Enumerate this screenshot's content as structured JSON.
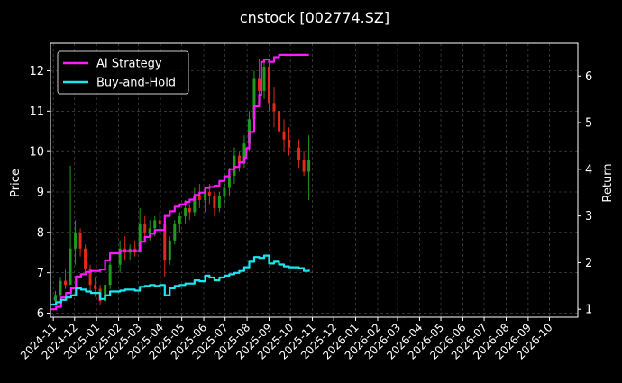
{
  "chart_data": {
    "type": "line",
    "title": "cnstock [002774.SZ]",
    "xlabel": "",
    "ylabel_left": "Price",
    "ylabel_right": "Return",
    "x_tick_labels": [
      "2024-11",
      "2024-12",
      "2025-01",
      "2025-02",
      "2025-03",
      "2025-04",
      "2025-05",
      "2025-06",
      "2025-07",
      "2025-08",
      "2025-09",
      "2025-10",
      "2025-11",
      "2025-12",
      "2026-01",
      "2026-02",
      "2026-03",
      "2026-04",
      "2026-05",
      "2026-06",
      "2026-07",
      "2026-08",
      "2026-09",
      "2026-10"
    ],
    "x_range": [
      "2024-10-28",
      "2026-11-10"
    ],
    "ylim_left": [
      5.9,
      12.68
    ],
    "ylim_right": [
      0.83,
      6.7
    ],
    "y_ticks_left": [
      6,
      7,
      8,
      9,
      10,
      11,
      12
    ],
    "y_ticks_right": [
      1,
      2,
      3,
      4,
      5,
      6
    ],
    "grid": true,
    "legend_position": "top-left",
    "colors": {
      "background": "#000000",
      "up": "#1e9a1e",
      "down": "#e02a1a",
      "ai": "#ff1aff",
      "bh": "#19e8f2",
      "grid": "#555555"
    },
    "price_candles": {
      "note_ohlc": "[date, open, high, low, close]",
      "values": [
        [
          "2024-11-04",
          6.3,
          6.55,
          6.2,
          6.45
        ],
        [
          "2024-11-11",
          6.45,
          6.9,
          6.4,
          6.8
        ],
        [
          "2024-11-18",
          6.8,
          7.1,
          6.6,
          6.7
        ],
        [
          "2024-11-25",
          6.7,
          9.65,
          6.7,
          7.6
        ],
        [
          "2024-12-02",
          7.6,
          8.3,
          7.2,
          8.0
        ],
        [
          "2024-12-09",
          8.0,
          8.1,
          7.4,
          7.6
        ],
        [
          "2024-12-16",
          7.6,
          7.7,
          7.0,
          7.1
        ],
        [
          "2024-12-23",
          7.1,
          7.2,
          6.5,
          6.7
        ],
        [
          "2024-12-30",
          6.7,
          6.9,
          6.4,
          6.6
        ],
        [
          "2025-01-06",
          6.6,
          6.7,
          6.2,
          6.3
        ],
        [
          "2025-01-13",
          6.3,
          6.8,
          6.2,
          6.7
        ],
        [
          "2025-01-20",
          6.7,
          7.3,
          6.6,
          7.2
        ],
        [
          "2025-02-03",
          7.2,
          7.8,
          7.0,
          7.6
        ],
        [
          "2025-02-10",
          7.6,
          7.9,
          7.3,
          7.5
        ],
        [
          "2025-02-17",
          7.5,
          7.7,
          7.3,
          7.6
        ],
        [
          "2025-02-24",
          7.6,
          7.8,
          7.4,
          7.5
        ],
        [
          "2025-03-03",
          7.5,
          8.6,
          7.5,
          8.2
        ],
        [
          "2025-03-10",
          8.2,
          8.4,
          7.9,
          8.0
        ],
        [
          "2025-03-17",
          8.0,
          8.3,
          7.8,
          8.1
        ],
        [
          "2025-03-24",
          8.1,
          8.4,
          7.9,
          8.3
        ],
        [
          "2025-03-31",
          8.3,
          8.5,
          8.0,
          8.2
        ],
        [
          "2025-04-07",
          8.2,
          8.3,
          6.9,
          7.3
        ],
        [
          "2025-04-14",
          7.3,
          7.9,
          7.2,
          7.8
        ],
        [
          "2025-04-21",
          7.8,
          8.3,
          7.7,
          8.2
        ],
        [
          "2025-04-28",
          8.2,
          8.5,
          8.0,
          8.4
        ],
        [
          "2025-05-06",
          8.4,
          8.8,
          8.2,
          8.6
        ],
        [
          "2025-05-12",
          8.6,
          8.7,
          8.3,
          8.5
        ],
        [
          "2025-05-19",
          8.5,
          9.1,
          8.4,
          8.9
        ],
        [
          "2025-05-26",
          8.9,
          9.2,
          8.6,
          8.8
        ],
        [
          "2025-06-03",
          8.8,
          9.1,
          8.5,
          9.0
        ],
        [
          "2025-06-09",
          9.0,
          9.2,
          8.7,
          8.9
        ],
        [
          "2025-06-16",
          8.9,
          9.0,
          8.4,
          8.6
        ],
        [
          "2025-06-23",
          8.6,
          9.0,
          8.5,
          8.9
        ],
        [
          "2025-06-30",
          8.9,
          9.3,
          8.7,
          9.1
        ],
        [
          "2025-07-07",
          9.1,
          9.6,
          8.9,
          9.4
        ],
        [
          "2025-07-14",
          9.4,
          10.1,
          9.2,
          9.9
        ],
        [
          "2025-07-21",
          9.9,
          10.0,
          9.5,
          9.7
        ],
        [
          "2025-07-28",
          9.7,
          10.4,
          9.6,
          10.2
        ],
        [
          "2025-08-04",
          10.2,
          11.0,
          10.0,
          10.8
        ],
        [
          "2025-08-11",
          10.8,
          12.0,
          10.6,
          11.8
        ],
        [
          "2025-08-18",
          11.8,
          12.3,
          11.2,
          11.5
        ],
        [
          "2025-08-25",
          11.5,
          12.3,
          11.3,
          12.1
        ],
        [
          "2025-09-01",
          12.1,
          12.2,
          11.0,
          11.2
        ],
        [
          "2025-09-08",
          11.2,
          11.6,
          10.6,
          11.0
        ],
        [
          "2025-09-15",
          11.0,
          11.3,
          10.3,
          10.5
        ],
        [
          "2025-09-22",
          10.5,
          10.8,
          10.0,
          10.3
        ],
        [
          "2025-09-29",
          10.3,
          10.6,
          9.9,
          10.1
        ],
        [
          "2025-10-13",
          10.1,
          10.3,
          9.6,
          9.8
        ],
        [
          "2025-10-20",
          9.8,
          10.0,
          9.4,
          9.5
        ],
        [
          "2025-10-27",
          9.5,
          10.4,
          8.8,
          9.8
        ]
      ]
    },
    "series": [
      {
        "name": "AI Strategy",
        "axis": "right",
        "color": "#ff1aff",
        "points": [
          [
            "2024-10-29",
            1.0
          ],
          [
            "2024-11-05",
            1.05
          ],
          [
            "2024-11-12",
            1.25
          ],
          [
            "2024-11-19",
            1.35
          ],
          [
            "2024-11-26",
            1.45
          ],
          [
            "2024-12-03",
            1.7
          ],
          [
            "2024-12-10",
            1.75
          ],
          [
            "2024-12-17",
            1.8
          ],
          [
            "2024-12-24",
            1.82
          ],
          [
            "2025-01-06",
            1.85
          ],
          [
            "2025-01-13",
            2.05
          ],
          [
            "2025-01-20",
            2.2
          ],
          [
            "2025-02-03",
            2.25
          ],
          [
            "2025-02-10",
            2.25
          ],
          [
            "2025-02-17",
            2.25
          ],
          [
            "2025-02-24",
            2.25
          ],
          [
            "2025-03-03",
            2.45
          ],
          [
            "2025-03-10",
            2.55
          ],
          [
            "2025-03-17",
            2.62
          ],
          [
            "2025-03-24",
            2.7
          ],
          [
            "2025-03-31",
            2.7
          ],
          [
            "2025-04-03",
            2.7
          ],
          [
            "2025-04-07",
            3.0
          ],
          [
            "2025-04-14",
            3.1
          ],
          [
            "2025-04-21",
            3.2
          ],
          [
            "2025-04-28",
            3.25
          ],
          [
            "2025-05-06",
            3.3
          ],
          [
            "2025-05-12",
            3.35
          ],
          [
            "2025-05-19",
            3.45
          ],
          [
            "2025-05-26",
            3.5
          ],
          [
            "2025-06-03",
            3.6
          ],
          [
            "2025-06-09",
            3.62
          ],
          [
            "2025-06-16",
            3.65
          ],
          [
            "2025-06-23",
            3.75
          ],
          [
            "2025-06-30",
            3.85
          ],
          [
            "2025-07-07",
            4.0
          ],
          [
            "2025-07-14",
            4.05
          ],
          [
            "2025-07-21",
            4.15
          ],
          [
            "2025-07-28",
            4.25
          ],
          [
            "2025-07-31",
            4.45
          ],
          [
            "2025-08-04",
            4.8
          ],
          [
            "2025-08-11",
            5.35
          ],
          [
            "2025-08-18",
            5.6
          ],
          [
            "2025-08-21",
            6.3
          ],
          [
            "2025-08-25",
            6.35
          ],
          [
            "2025-09-01",
            6.3
          ],
          [
            "2025-09-08",
            6.4
          ],
          [
            "2025-09-15",
            6.45
          ],
          [
            "2025-09-22",
            6.45
          ],
          [
            "2025-10-13",
            6.45
          ],
          [
            "2025-10-27",
            6.45
          ]
        ]
      },
      {
        "name": "Buy-and-Hold",
        "axis": "right",
        "color": "#19e8f2",
        "points": [
          [
            "2024-10-29",
            1.1
          ],
          [
            "2024-11-05",
            1.15
          ],
          [
            "2024-11-12",
            1.2
          ],
          [
            "2024-11-19",
            1.25
          ],
          [
            "2024-11-26",
            1.3
          ],
          [
            "2024-12-03",
            1.45
          ],
          [
            "2024-12-10",
            1.42
          ],
          [
            "2024-12-17",
            1.38
          ],
          [
            "2024-12-24",
            1.35
          ],
          [
            "2025-01-06",
            1.22
          ],
          [
            "2025-01-13",
            1.3
          ],
          [
            "2025-01-20",
            1.38
          ],
          [
            "2025-02-03",
            1.4
          ],
          [
            "2025-02-10",
            1.42
          ],
          [
            "2025-02-17",
            1.42
          ],
          [
            "2025-02-24",
            1.4
          ],
          [
            "2025-03-03",
            1.48
          ],
          [
            "2025-03-10",
            1.5
          ],
          [
            "2025-03-17",
            1.52
          ],
          [
            "2025-03-24",
            1.5
          ],
          [
            "2025-03-31",
            1.52
          ],
          [
            "2025-04-07",
            1.3
          ],
          [
            "2025-04-14",
            1.45
          ],
          [
            "2025-04-21",
            1.5
          ],
          [
            "2025-04-28",
            1.52
          ],
          [
            "2025-05-06",
            1.55
          ],
          [
            "2025-05-12",
            1.55
          ],
          [
            "2025-05-19",
            1.62
          ],
          [
            "2025-05-26",
            1.6
          ],
          [
            "2025-06-03",
            1.72
          ],
          [
            "2025-06-09",
            1.68
          ],
          [
            "2025-06-16",
            1.62
          ],
          [
            "2025-06-23",
            1.68
          ],
          [
            "2025-06-30",
            1.72
          ],
          [
            "2025-07-07",
            1.75
          ],
          [
            "2025-07-14",
            1.78
          ],
          [
            "2025-07-21",
            1.82
          ],
          [
            "2025-07-28",
            1.9
          ],
          [
            "2025-08-04",
            2.02
          ],
          [
            "2025-08-11",
            2.12
          ],
          [
            "2025-08-18",
            2.1
          ],
          [
            "2025-08-25",
            2.15
          ],
          [
            "2025-09-01",
            1.98
          ],
          [
            "2025-09-08",
            2.02
          ],
          [
            "2025-09-15",
            1.96
          ],
          [
            "2025-09-22",
            1.92
          ],
          [
            "2025-09-29",
            1.9
          ],
          [
            "2025-10-13",
            1.88
          ],
          [
            "2025-10-20",
            1.82
          ],
          [
            "2025-10-27",
            1.85
          ]
        ]
      }
    ]
  }
}
